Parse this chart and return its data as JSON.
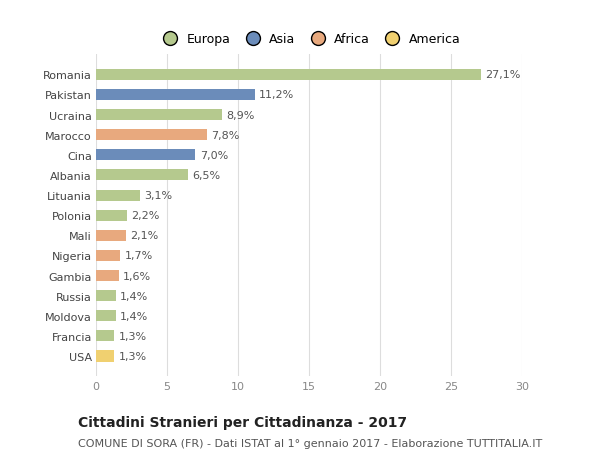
{
  "categories": [
    "Romania",
    "Pakistan",
    "Ucraina",
    "Marocco",
    "Cina",
    "Albania",
    "Lituania",
    "Polonia",
    "Mali",
    "Nigeria",
    "Gambia",
    "Russia",
    "Moldova",
    "Francia",
    "USA"
  ],
  "values": [
    27.1,
    11.2,
    8.9,
    7.8,
    7.0,
    6.5,
    3.1,
    2.2,
    2.1,
    1.7,
    1.6,
    1.4,
    1.4,
    1.3,
    1.3
  ],
  "labels": [
    "27,1%",
    "11,2%",
    "8,9%",
    "7,8%",
    "7,0%",
    "6,5%",
    "3,1%",
    "2,2%",
    "2,1%",
    "1,7%",
    "1,6%",
    "1,4%",
    "1,4%",
    "1,3%",
    "1,3%"
  ],
  "colors": [
    "#b5c98e",
    "#6b8cba",
    "#b5c98e",
    "#e8a97e",
    "#6b8cba",
    "#b5c98e",
    "#b5c98e",
    "#b5c98e",
    "#e8a97e",
    "#e8a97e",
    "#e8a97e",
    "#b5c98e",
    "#b5c98e",
    "#b5c98e",
    "#f0d070"
  ],
  "continent": [
    "Europa",
    "Asia",
    "Europa",
    "Africa",
    "Asia",
    "Europa",
    "Europa",
    "Europa",
    "Africa",
    "Africa",
    "Africa",
    "Europa",
    "Europa",
    "Europa",
    "America"
  ],
  "legend_labels": [
    "Europa",
    "Asia",
    "Africa",
    "America"
  ],
  "legend_colors": [
    "#b5c98e",
    "#6b8cba",
    "#e8a97e",
    "#f0d070"
  ],
  "xlim": [
    0,
    30
  ],
  "xticks": [
    0,
    5,
    10,
    15,
    20,
    25,
    30
  ],
  "title": "Cittadini Stranieri per Cittadinanza - 2017",
  "subtitle": "COMUNE DI SORA (FR) - Dati ISTAT al 1° gennaio 2017 - Elaborazione TUTTITALIA.IT",
  "title_fontsize": 10,
  "subtitle_fontsize": 8,
  "label_fontsize": 8,
  "tick_fontsize": 8,
  "legend_fontsize": 9,
  "bg_color": "#ffffff",
  "bar_edge_color": "none"
}
